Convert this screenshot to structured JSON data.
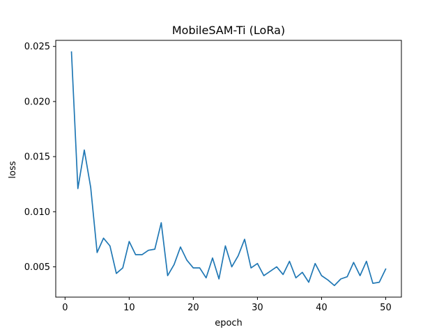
{
  "chart_data": {
    "type": "line",
    "title": "MobileSAM-Ti (LoRa)",
    "xlabel": "epoch",
    "ylabel": "loss",
    "xlim": [
      -1.45,
      52.45
    ],
    "ylim": [
      0.00225,
      0.02555
    ],
    "xticks": [
      0,
      10,
      20,
      30,
      40,
      50
    ],
    "xtick_labels": [
      "0",
      "10",
      "20",
      "30",
      "40",
      "50"
    ],
    "yticks": [
      0.005,
      0.01,
      0.015,
      0.02,
      0.025
    ],
    "ytick_labels": [
      "0.005",
      "0.010",
      "0.015",
      "0.020",
      "0.025"
    ],
    "grid": false,
    "series": [
      {
        "color": "#1f77b4",
        "x": [
          1,
          2,
          3,
          4,
          5,
          6,
          7,
          8,
          9,
          10,
          11,
          12,
          13,
          14,
          15,
          16,
          17,
          18,
          19,
          20,
          21,
          22,
          23,
          24,
          25,
          26,
          27,
          28,
          29,
          30,
          31,
          32,
          33,
          34,
          35,
          36,
          37,
          38,
          39,
          40,
          41,
          42,
          43,
          44,
          45,
          46,
          47,
          48,
          49,
          50
        ],
        "y": [
          0.0245,
          0.0121,
          0.0156,
          0.0122,
          0.0063,
          0.0076,
          0.0069,
          0.0044,
          0.0049,
          0.0073,
          0.0061,
          0.0061,
          0.0065,
          0.0066,
          0.009,
          0.0042,
          0.0052,
          0.0068,
          0.0056,
          0.0049,
          0.0049,
          0.004,
          0.0058,
          0.0039,
          0.0069,
          0.005,
          0.006,
          0.0075,
          0.0049,
          0.0053,
          0.0042,
          0.0046,
          0.005,
          0.0043,
          0.0055,
          0.004,
          0.0045,
          0.0036,
          0.0053,
          0.0042,
          0.0038,
          0.0033,
          0.0039,
          0.0041,
          0.0054,
          0.0042,
          0.0055,
          0.0035,
          0.0036,
          0.0048
        ]
      }
    ]
  }
}
